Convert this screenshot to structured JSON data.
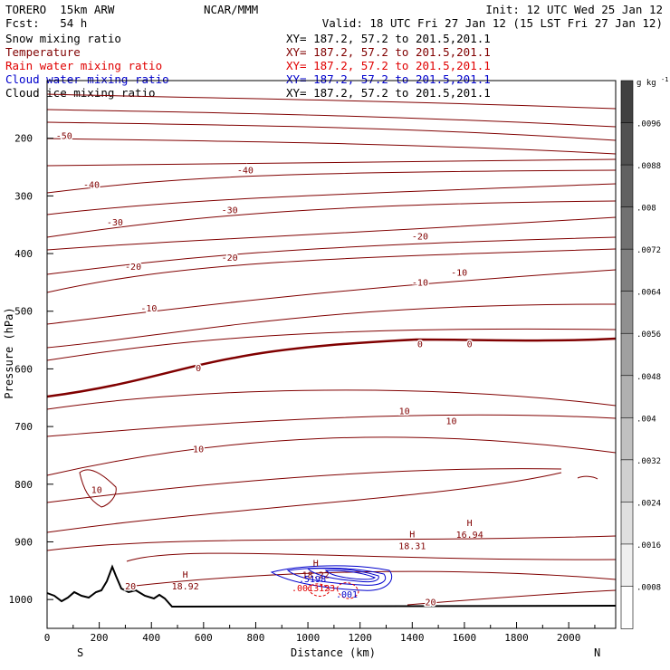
{
  "header": {
    "model": "TORERO  15km ARW",
    "center": "NCAR/MMM",
    "init": "Init: 12 UTC Wed 25 Jan 12",
    "fcst": "Fcst:   54 h",
    "valid": "Valid: 18 UTC Fri 27 Jan 12 (15 LST Fri 27 Jan 12)"
  },
  "fields": [
    {
      "name": "Snow mixing ratio",
      "xy": "XY= 187.2, 57.2 to 201.5,201.1",
      "color": "#000000"
    },
    {
      "name": "Temperature",
      "xy": "XY= 187.2, 57.2 to 201.5,201.1",
      "color": "#800000"
    },
    {
      "name": "Rain water mixing ratio",
      "xy": "XY= 187.2, 57.2 to 201.5,201.1",
      "color": "#e00000"
    },
    {
      "name": "Cloud water mixing ratio",
      "xy": "XY= 187.2, 57.2 to 201.5,201.1",
      "color": "#0000cc"
    },
    {
      "name": "Cloud ice mixing ratio",
      "xy": "XY= 187.2, 57.2 to 201.5,201.1",
      "color": "#000000"
    }
  ],
  "chart_data": {
    "type": "contour-cross-section",
    "xlabel": "Distance (km)",
    "ylabel": "Pressure (hPa)",
    "xlim": [
      0,
      2180
    ],
    "ylim": [
      1050,
      100
    ],
    "x_ticks": [
      0,
      200,
      400,
      600,
      800,
      1000,
      1200,
      1400,
      1600,
      1800,
      2000
    ],
    "x_tick_labels": [
      "0",
      "200",
      "400",
      "600",
      "800",
      "1000",
      "1200",
      "1400",
      "1600",
      "1800",
      "2000"
    ],
    "y_ticks": [
      200,
      300,
      400,
      500,
      600,
      700,
      800,
      900,
      1000
    ],
    "y_tick_labels": [
      "200",
      "300",
      "400",
      "500",
      "600",
      "700",
      "800",
      "900",
      "1000"
    ],
    "end_labels": {
      "left": "S",
      "right": "N"
    },
    "colorbar": {
      "unit": "g kg",
      "unit_exp": "-1",
      "levels": [
        0.0008,
        0.0016,
        0.0024,
        0.0032,
        0.004,
        0.0048,
        0.0056,
        0.0064,
        0.0072,
        0.008,
        0.0088,
        0.0096
      ],
      "labels": [
        ".0008",
        ".0016",
        ".0024",
        ".0032",
        ".004",
        ".0048",
        ".0056",
        ".0064",
        ".0072",
        ".008",
        ".0088",
        ".0096"
      ]
    },
    "temperature_contour_labels": [
      {
        "text": "-50",
        "x": 65,
        "p": 195
      },
      {
        "text": "-40",
        "x": 170,
        "p": 280
      },
      {
        "text": "-40",
        "x": 760,
        "p": 255
      },
      {
        "text": "-30",
        "x": 260,
        "p": 345
      },
      {
        "text": "-30",
        "x": 700,
        "p": 324
      },
      {
        "text": "-20",
        "x": 330,
        "p": 422
      },
      {
        "text": "-20",
        "x": 700,
        "p": 406
      },
      {
        "text": "-20",
        "x": 1430,
        "p": 369
      },
      {
        "text": "-10",
        "x": 390,
        "p": 494
      },
      {
        "text": "-10",
        "x": 1430,
        "p": 449
      },
      {
        "text": "-10",
        "x": 1580,
        "p": 432
      },
      {
        "text": "0",
        "x": 580,
        "p": 598
      },
      {
        "text": "0",
        "x": 1430,
        "p": 556
      },
      {
        "text": "0",
        "x": 1620,
        "p": 556
      },
      {
        "text": "10",
        "x": 1370,
        "p": 672
      },
      {
        "text": "10",
        "x": 1550,
        "p": 690
      },
      {
        "text": "10",
        "x": 580,
        "p": 738
      },
      {
        "text": "10",
        "x": 190,
        "p": 809
      },
      {
        "text": "20",
        "x": 320,
        "p": 976
      },
      {
        "text": "20",
        "x": 1470,
        "p": 1004
      }
    ],
    "high_labels": [
      {
        "letter": "H",
        "value": "16.94",
        "x": 1620,
        "p": 885
      },
      {
        "letter": "H",
        "value": "18.31",
        "x": 1400,
        "p": 905
      },
      {
        "letter": "H",
        "value": "18.22",
        "x": 1030,
        "p": 955
      },
      {
        "letter": "H",
        "value": "18.92",
        "x": 530,
        "p": 975
      }
    ],
    "cloud_labels": {
      "cloud_water": ".5198",
      "rain": ".0013123",
      "rain_min": ".001"
    }
  }
}
